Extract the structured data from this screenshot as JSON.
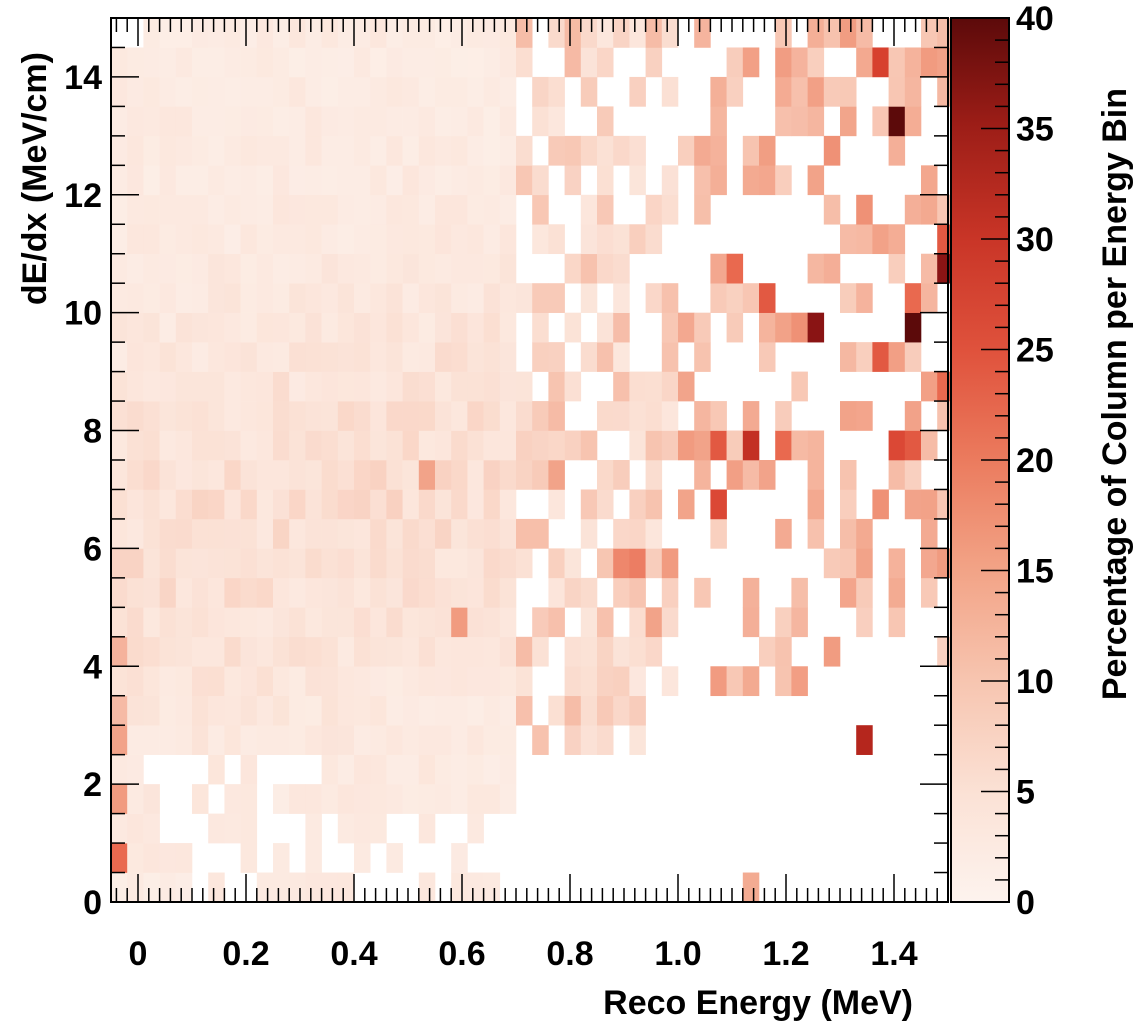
{
  "chart_data": {
    "type": "heatmap",
    "title": "",
    "xlabel": "Reco Energy (MeV)",
    "ylabel": "dE/dx (MeV/cm)",
    "zlabel": "Percentage of Column per Energy Bin",
    "xlim": [
      -0.05,
      1.5
    ],
    "ylim": [
      0,
      15
    ],
    "zlim": [
      0,
      40
    ],
    "x_ticks": [
      0,
      0.2,
      0.4,
      0.6,
      0.8,
      1.0,
      1.2,
      1.4
    ],
    "x_tick_labels": [
      "0",
      "0.2",
      "0.4",
      "0.6",
      "0.8",
      "1.0",
      "1.2",
      "1.4"
    ],
    "y_ticks": [
      0,
      2,
      4,
      6,
      8,
      10,
      12,
      14
    ],
    "y_tick_labels": [
      "0",
      "2",
      "4",
      "6",
      "8",
      "10",
      "12",
      "14"
    ],
    "z_ticks": [
      0,
      5,
      10,
      15,
      20,
      25,
      30,
      35,
      40
    ],
    "z_tick_labels": [
      "0",
      "5",
      "10",
      "15",
      "20",
      "25",
      "30",
      "35",
      "40"
    ],
    "bin_width_x": 0.03,
    "bin_height_y": 0.5,
    "colormap": [
      "#fdf2ec",
      "#fbe1d5",
      "#f7c2ae",
      "#f19b80",
      "#e9694f",
      "#d7402e",
      "#b5261d",
      "#8a1414",
      "#5c0a0a"
    ],
    "highlight_cells": [
      {
        "x": -0.035,
        "y": 0.75,
        "value": 20
      },
      {
        "x": -0.035,
        "y": 1.75,
        "value": 15
      },
      {
        "x": -0.035,
        "y": 2.75,
        "value": 14
      },
      {
        "x": -0.035,
        "y": 3.25,
        "value": 11
      },
      {
        "x": -0.035,
        "y": 4.25,
        "value": 12
      },
      {
        "x": 0.585,
        "y": 4.75,
        "value": 15
      },
      {
        "x": 0.525,
        "y": 7.25,
        "value": 14
      },
      {
        "x": 0.765,
        "y": 7.25,
        "value": 14
      },
      {
        "x": 0.885,
        "y": 5.75,
        "value": 17
      },
      {
        "x": 0.915,
        "y": 5.75,
        "value": 18
      },
      {
        "x": 0.945,
        "y": 4.75,
        "value": 14
      },
      {
        "x": 0.975,
        "y": 5.75,
        "value": 15
      },
      {
        "x": 1.005,
        "y": 7.75,
        "value": 15
      },
      {
        "x": 1.035,
        "y": 7.75,
        "value": 14
      },
      {
        "x": 1.065,
        "y": 7.75,
        "value": 22
      },
      {
        "x": 1.065,
        "y": 6.75,
        "value": 24
      },
      {
        "x": 1.125,
        "y": 7.75,
        "value": 28
      },
      {
        "x": 1.125,
        "y": 0.25,
        "value": 13
      },
      {
        "x": 1.095,
        "y": 10.75,
        "value": 20
      },
      {
        "x": 1.155,
        "y": 10.25,
        "value": 22
      },
      {
        "x": 1.185,
        "y": 7.75,
        "value": 20
      },
      {
        "x": 1.215,
        "y": 9.75,
        "value": 16
      },
      {
        "x": 1.245,
        "y": 9.75,
        "value": 35
      },
      {
        "x": 1.245,
        "y": 12.25,
        "value": 14
      },
      {
        "x": 1.275,
        "y": 12.75,
        "value": 16
      },
      {
        "x": 1.305,
        "y": 8.25,
        "value": 14
      },
      {
        "x": 1.335,
        "y": 2.75,
        "value": 30
      },
      {
        "x": 1.335,
        "y": 11.75,
        "value": 16
      },
      {
        "x": 1.365,
        "y": 14.25,
        "value": 25
      },
      {
        "x": 1.365,
        "y": 9.25,
        "value": 22
      },
      {
        "x": 1.365,
        "y": 6.75,
        "value": 16
      },
      {
        "x": 1.395,
        "y": 13.25,
        "value": 40
      },
      {
        "x": 1.395,
        "y": 7.75,
        "value": 24
      },
      {
        "x": 1.425,
        "y": 9.75,
        "value": 40
      },
      {
        "x": 1.425,
        "y": 7.75,
        "value": 22
      },
      {
        "x": 1.425,
        "y": 10.25,
        "value": 20
      },
      {
        "x": 1.455,
        "y": 14.25,
        "value": 15
      },
      {
        "x": 1.485,
        "y": 10.75,
        "value": 35
      },
      {
        "x": 1.485,
        "y": 11.25,
        "value": 22
      },
      {
        "x": 1.485,
        "y": 8.75,
        "value": 20
      },
      {
        "x": 1.485,
        "y": 5.75,
        "value": 15
      }
    ]
  }
}
